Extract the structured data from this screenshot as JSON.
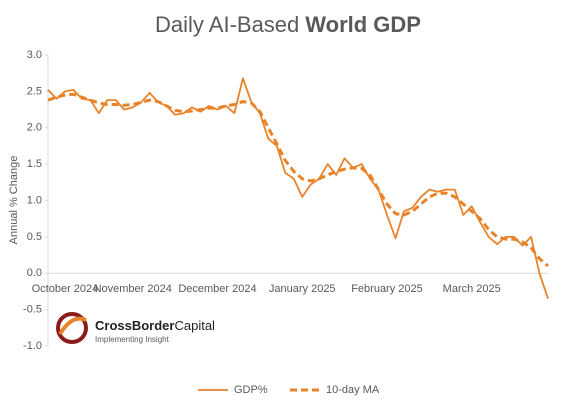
{
  "chart_data": {
    "type": "line",
    "title": [
      "Daily AI-Based",
      "World GDP"
    ],
    "y_label": "Annual % Change",
    "logo": {
      "name": [
        "CrossBorder",
        "Capital"
      ],
      "tagline": "Implementing Insight"
    },
    "categories": [
      null,
      null,
      "October 2024",
      null,
      null,
      null,
      null,
      null,
      null,
      null,
      "November 2024",
      null,
      null,
      null,
      null,
      null,
      null,
      null,
      null,
      null,
      "December 2024",
      null,
      null,
      null,
      null,
      null,
      null,
      null,
      null,
      null,
      "January 2025",
      null,
      null,
      null,
      null,
      null,
      null,
      null,
      null,
      null,
      "February 2025",
      null,
      null,
      null,
      null,
      null,
      null,
      null,
      null,
      null,
      "March 2025",
      null,
      null,
      null,
      null,
      null,
      null,
      null,
      null,
      null
    ],
    "series": [
      {
        "name": "GDP%",
        "color": "#E8832A",
        "dashed": false,
        "values": [
          2.52,
          2.4,
          2.5,
          2.52,
          2.4,
          2.38,
          2.2,
          2.38,
          2.38,
          2.25,
          2.28,
          2.35,
          2.48,
          2.35,
          2.3,
          2.18,
          2.2,
          2.28,
          2.22,
          2.3,
          2.25,
          2.3,
          2.2,
          2.68,
          2.35,
          2.2,
          1.85,
          1.75,
          1.38,
          1.3,
          1.05,
          1.22,
          1.3,
          1.5,
          1.35,
          1.58,
          1.45,
          1.5,
          1.3,
          1.15,
          0.8,
          0.48,
          0.85,
          0.9,
          1.05,
          1.15,
          1.12,
          1.15,
          1.15,
          0.8,
          0.92,
          0.7,
          0.5,
          0.4,
          0.5,
          0.5,
          0.38,
          0.5,
          0.0,
          -0.35
        ]
      },
      {
        "name": "10-day MA",
        "color": "#E8832A",
        "dashed": true,
        "values": [
          2.38,
          2.42,
          2.45,
          2.46,
          2.42,
          2.38,
          2.34,
          2.32,
          2.32,
          2.31,
          2.32,
          2.35,
          2.38,
          2.36,
          2.3,
          2.24,
          2.22,
          2.23,
          2.25,
          2.27,
          2.27,
          2.3,
          2.32,
          2.36,
          2.34,
          2.22,
          2.0,
          1.78,
          1.55,
          1.4,
          1.3,
          1.27,
          1.3,
          1.35,
          1.4,
          1.43,
          1.45,
          1.44,
          1.35,
          1.15,
          0.95,
          0.82,
          0.8,
          0.85,
          0.95,
          1.05,
          1.1,
          1.1,
          1.05,
          0.95,
          0.85,
          0.75,
          0.6,
          0.5,
          0.47,
          0.47,
          0.43,
          0.35,
          0.2,
          0.1
        ]
      }
    ],
    "ylim": [
      -1.0,
      3.0
    ],
    "yticks": [
      {
        "value": -1,
        "label": "-1.0"
      },
      {
        "value": -0.5,
        "label": "-0.5"
      },
      {
        "value": 0,
        "label": "0.0"
      },
      {
        "value": 0.5,
        "label": "0.5"
      },
      {
        "value": 1,
        "label": "1.0"
      },
      {
        "value": 1.5,
        "label": "1.5"
      },
      {
        "value": 2,
        "label": "2.0"
      },
      {
        "value": 2.5,
        "label": "2.5"
      },
      {
        "value": 3,
        "label": "3.0"
      }
    ],
    "grid": false,
    "legend": "bottom"
  }
}
